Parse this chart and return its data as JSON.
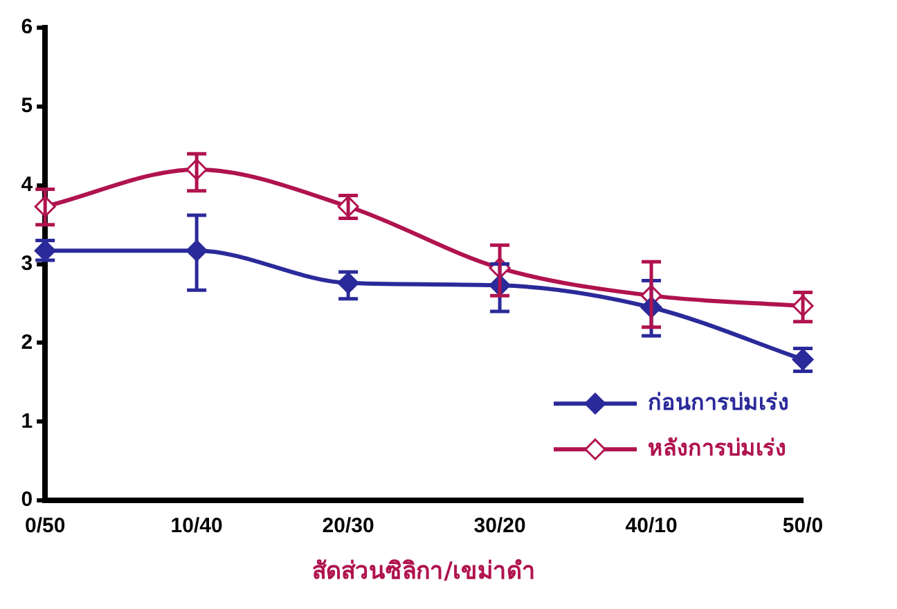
{
  "chart_data": {
    "type": "line",
    "xlabel": "สัดส่วนซิลิกา/เขม่าดำ",
    "categories": [
      "0/50",
      "10/40",
      "20/30",
      "30/20",
      "40/10",
      "50/0"
    ],
    "ylim": [
      0,
      6
    ],
    "yticks": [
      0,
      1,
      2,
      3,
      4,
      5,
      6
    ],
    "grid": false,
    "legend": "bottom right",
    "marker": "diamond",
    "line_style": "solid",
    "series": [
      {
        "name": "ก่อนการบ่มเร่ง",
        "color": "#2b2a9a",
        "values": [
          3.17,
          3.17,
          2.76,
          2.73,
          2.45,
          1.79
        ],
        "errors": [
          [
            3.05,
            3.3
          ],
          [
            2.67,
            3.62
          ],
          [
            2.56,
            2.9
          ],
          [
            2.4,
            3.0
          ],
          [
            2.09,
            2.79
          ],
          [
            1.64,
            1.93
          ]
        ]
      },
      {
        "name": "หลังการบ่มเร่ง",
        "color": "#b0134e",
        "values": [
          3.73,
          4.2,
          3.73,
          2.95,
          2.6,
          2.47
        ],
        "errors": [
          [
            3.5,
            3.95
          ],
          [
            3.93,
            4.4
          ],
          [
            3.58,
            3.87
          ],
          [
            2.6,
            3.24
          ],
          [
            2.2,
            3.03
          ],
          [
            2.27,
            2.64
          ]
        ]
      }
    ]
  }
}
